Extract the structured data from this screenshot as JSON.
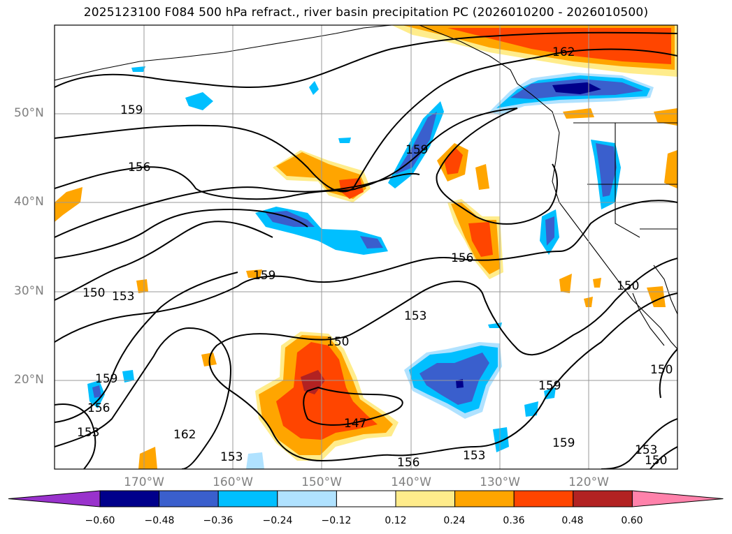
{
  "title": "2025123100 F084 500 hPa refract., river basin precipitation PC (2026010200 - 2026010500)",
  "lat_labels": [
    "50°N",
    "40°N",
    "30°N",
    "20°N"
  ],
  "lon_labels": [
    "170°W",
    "160°W",
    "150°W",
    "140°W",
    "130°W",
    "120°W"
  ],
  "colorbar": {
    "colors": [
      "#9932CC",
      "#00008B",
      "#3A5FCD",
      "#00BFFF",
      "#B0E2FF",
      "#FFFFFF",
      "#FFEC8B",
      "#FFA500",
      "#FF4500",
      "#B22222",
      "#FF82AB"
    ],
    "labels": [
      "−0.60",
      "−0.48",
      "−0.36",
      "−0.24",
      "−0.12",
      "0.12",
      "0.24",
      "0.36",
      "0.48",
      "0.60"
    ]
  },
  "contour_labels": [
    "159",
    "156",
    "159",
    "162",
    "159",
    "150",
    "153",
    "156",
    "153",
    "150",
    "147",
    "159",
    "153",
    "156",
    "162",
    "159",
    "153",
    "156",
    "159",
    "153",
    "150",
    "150",
    "153",
    "150"
  ]
}
